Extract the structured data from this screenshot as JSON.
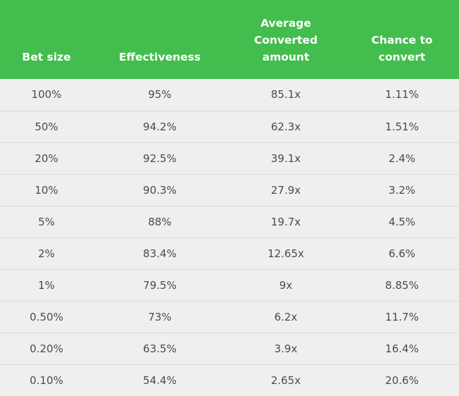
{
  "table": {
    "headers": [
      "Bet size",
      "Effectiveness",
      "Average Converted amount",
      "Chance to convert"
    ],
    "rows": [
      [
        "100%",
        "95%",
        "85.1x",
        "1.11%"
      ],
      [
        "50%",
        "94.2%",
        "62.3x",
        "1.51%"
      ],
      [
        "20%",
        "92.5%",
        "39.1x",
        "2.4%"
      ],
      [
        "10%",
        "90.3%",
        "27.9x",
        "3.2%"
      ],
      [
        "5%",
        "88%",
        "19.7x",
        "4.5%"
      ],
      [
        "2%",
        "83.4%",
        "12.65x",
        "6.6%"
      ],
      [
        "1%",
        "79.5%",
        "9x",
        "8.85%"
      ],
      [
        "0.50%",
        "73%",
        "6.2x",
        "11.7%"
      ],
      [
        "0.20%",
        "63.5%",
        "3.9x",
        "16.4%"
      ],
      [
        "0.10%",
        "54.4%",
        "2.65x",
        "20.6%"
      ]
    ]
  },
  "colors": {
    "header_bg": "#43bd4e",
    "header_text": "#ffffff",
    "row_bg": "#f0efef",
    "cell_text": "#4a4a4a",
    "divider": "#d9d9d9"
  }
}
